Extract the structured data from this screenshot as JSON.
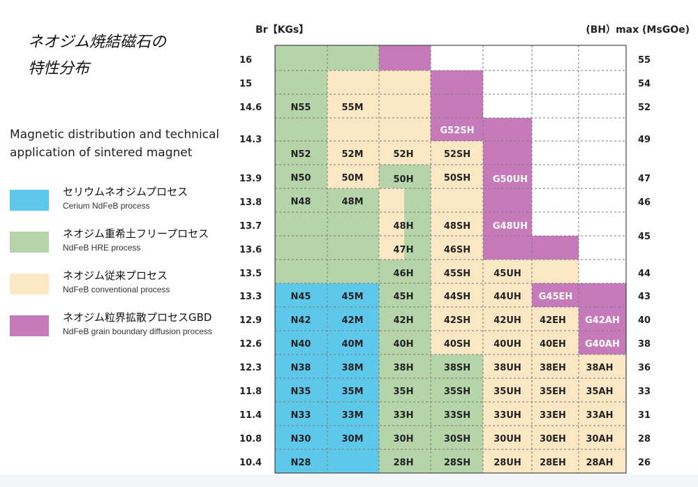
{
  "title_jp": "ネオジム焼結磁石の\n特性分布",
  "subtitle_en": "Magnetic distribution and technical application of sintered magnet",
  "legend": [
    {
      "jp": "セリウムネオジムプロセス",
      "en": "Cerium NdFeB process",
      "color": "#5ec8ea"
    },
    {
      "jp": "ネオジム重希土フリープロセス",
      "en": "NdFeB HRE process",
      "color": "#b5d4aa"
    },
    {
      "jp": "ネオジム従来プロセス",
      "en": "NdFeB conventional process",
      "color": "#fbe7c4"
    },
    {
      "jp": "ネオジム粒界拡散プロセスGBD",
      "en": "NdFeB grain boundary diffusion process",
      "color": "#c77ab9"
    }
  ],
  "chart_data": {
    "type": "table",
    "left_axis_label": "Br【KGs】",
    "right_axis_label": "(BH）max (MsGOe)",
    "br_ticks": [
      "16",
      "15",
      "14.6",
      "14.3",
      "13.9",
      "13.8",
      "13.7",
      "13.6",
      "13.5",
      "13.3",
      "12.9",
      "12.6",
      "12.3",
      "11.8",
      "11.4",
      "10.8",
      "10.4"
    ],
    "bhmax_ticks": [
      "55",
      "54",
      "52",
      "49",
      "47",
      "46",
      "45",
      "44",
      "43",
      "40",
      "38",
      "36",
      "33",
      "31",
      "28",
      "26"
    ],
    "grades": [
      {
        "label": "N55",
        "process": "HRE"
      },
      {
        "label": "N52",
        "process": "HRE"
      },
      {
        "label": "N50",
        "process": "HRE"
      },
      {
        "label": "N48",
        "process": "HRE"
      },
      {
        "label": "N45",
        "process": "Cerium"
      },
      {
        "label": "N42",
        "process": "Cerium"
      },
      {
        "label": "N40",
        "process": "Cerium"
      },
      {
        "label": "N38",
        "process": "Cerium"
      },
      {
        "label": "N35",
        "process": "Cerium"
      },
      {
        "label": "N33",
        "process": "Cerium"
      },
      {
        "label": "N30",
        "process": "Cerium"
      },
      {
        "label": "N28",
        "process": "Cerium"
      },
      {
        "label": "55M",
        "process": "Conventional"
      },
      {
        "label": "52M",
        "process": "Conventional"
      },
      {
        "label": "50M",
        "process": "HRE"
      },
      {
        "label": "48M",
        "process": "HRE"
      },
      {
        "label": "45M",
        "process": "Cerium"
      },
      {
        "label": "42M",
        "process": "Cerium"
      },
      {
        "label": "40M",
        "process": "Cerium"
      },
      {
        "label": "38M",
        "process": "Cerium"
      },
      {
        "label": "35M",
        "process": "Cerium"
      },
      {
        "label": "33M",
        "process": "Cerium"
      },
      {
        "label": "30M",
        "process": "Cerium"
      },
      {
        "label": "52H",
        "process": "Conventional"
      },
      {
        "label": "50H",
        "process": "HRE"
      },
      {
        "label": "48H",
        "process": "HRE"
      },
      {
        "label": "47H",
        "process": "HRE"
      },
      {
        "label": "46H",
        "process": "HRE"
      },
      {
        "label": "45H",
        "process": "HRE"
      },
      {
        "label": "42H",
        "process": "HRE"
      },
      {
        "label": "40H",
        "process": "HRE"
      },
      {
        "label": "38H",
        "process": "HRE"
      },
      {
        "label": "35H",
        "process": "HRE"
      },
      {
        "label": "33H",
        "process": "HRE"
      },
      {
        "label": "30H",
        "process": "HRE"
      },
      {
        "label": "28H",
        "process": "HRE"
      },
      {
        "label": "G52SH",
        "process": "GBD"
      },
      {
        "label": "52SH",
        "process": "Conventional"
      },
      {
        "label": "50SH",
        "process": "Conventional"
      },
      {
        "label": "48SH",
        "process": "Conventional"
      },
      {
        "label": "46SH",
        "process": "Conventional"
      },
      {
        "label": "45SH",
        "process": "Conventional"
      },
      {
        "label": "44SH",
        "process": "Conventional"
      },
      {
        "label": "42SH",
        "process": "HRE"
      },
      {
        "label": "40SH",
        "process": "HRE"
      },
      {
        "label": "38SH",
        "process": "HRE"
      },
      {
        "label": "35SH",
        "process": "HRE"
      },
      {
        "label": "33SH",
        "process": "HRE"
      },
      {
        "label": "30SH",
        "process": "HRE"
      },
      {
        "label": "28SH",
        "process": "HRE"
      },
      {
        "label": "G50UH",
        "process": "GBD"
      },
      {
        "label": "G48UH",
        "process": "GBD"
      },
      {
        "label": "45UH",
        "process": "Conventional"
      },
      {
        "label": "44UH",
        "process": "Conventional"
      },
      {
        "label": "42UH",
        "process": "Conventional"
      },
      {
        "label": "40UH",
        "process": "Conventional"
      },
      {
        "label": "38UH",
        "process": "Conventional"
      },
      {
        "label": "35UH",
        "process": "Conventional"
      },
      {
        "label": "33UH",
        "process": "Conventional"
      },
      {
        "label": "30UH",
        "process": "Conventional"
      },
      {
        "label": "28UH",
        "process": "Conventional"
      },
      {
        "label": "G45EH",
        "process": "GBD"
      },
      {
        "label": "42EH",
        "process": "Conventional"
      },
      {
        "label": "40EH",
        "process": "Conventional"
      },
      {
        "label": "38EH",
        "process": "Conventional"
      },
      {
        "label": "35EH",
        "process": "Conventional"
      },
      {
        "label": "33EH",
        "process": "Conventional"
      },
      {
        "label": "30EH",
        "process": "Conventional"
      },
      {
        "label": "28EH",
        "process": "Conventional"
      },
      {
        "label": "G42AH",
        "process": "GBD"
      },
      {
        "label": "G40AH",
        "process": "GBD"
      },
      {
        "label": "38AH",
        "process": "Conventional"
      },
      {
        "label": "35AH",
        "process": "Conventional"
      },
      {
        "label": "33AH",
        "process": "Conventional"
      },
      {
        "label": "30AH",
        "process": "Conventional"
      },
      {
        "label": "28AH",
        "process": "Conventional"
      }
    ],
    "process_colors": {
      "Cerium": "#5ec8ea",
      "HRE": "#b5d4aa",
      "Conventional": "#fbe7c4",
      "GBD": "#c77ab9"
    }
  }
}
